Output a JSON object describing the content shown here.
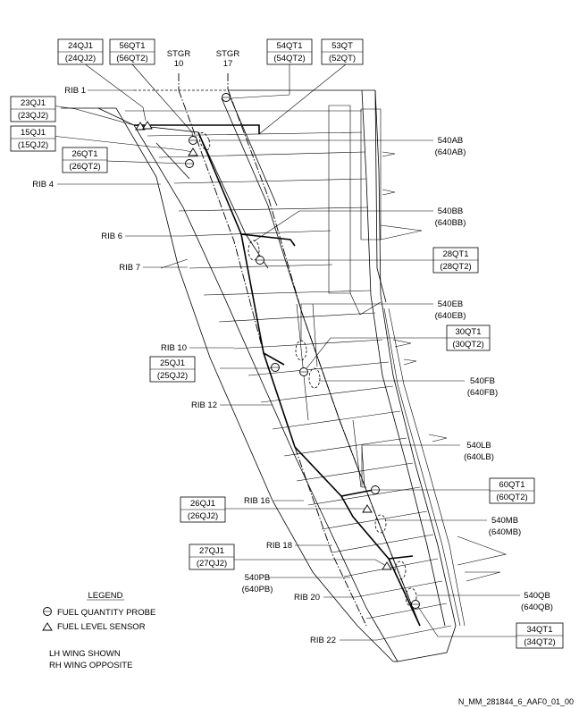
{
  "stringers": [
    "STGR",
    "10",
    "STGR",
    "17"
  ],
  "ribs": {
    "rib1": "RIB 1",
    "rib4": "RIB 4",
    "rib6": "RIB 6",
    "rib7": "RIB 7",
    "rib10": "RIB 10",
    "rib12": "RIB 12",
    "rib16": "RIB 16",
    "rib18": "RIB 18",
    "rib20": "RIB 20",
    "rib22": "RIB 22"
  },
  "boxes": {
    "b24qj": [
      "24QJ1",
      "(24QJ2)"
    ],
    "b56qt": [
      "56QT1",
      "(56QT2)"
    ],
    "b54qt": [
      "54QT1",
      "(54QT2)"
    ],
    "b53qt": [
      "53QT",
      "(52QT)"
    ],
    "b23qj": [
      "23QJ1",
      "(23QJ2)"
    ],
    "b15qj": [
      "15QJ1",
      "(15QJ2)"
    ],
    "b26qt": [
      "26QT1",
      "(26QT2)"
    ],
    "b28qt": [
      "28QT1",
      "(28QT2)"
    ],
    "b30qt": [
      "30QT1",
      "(30QT2)"
    ],
    "b25qj": [
      "25QJ1",
      "(25QJ2)"
    ],
    "b60qt": [
      "60QT1",
      "(60QT2)"
    ],
    "b26qj": [
      "26QJ1",
      "(26QJ2)"
    ],
    "b27qj": [
      "27QJ1",
      "(27QJ2)"
    ],
    "b34qt": [
      "34QT1",
      "(34QT2)"
    ]
  },
  "compartments": {
    "ab": [
      "540AB",
      "(640AB)"
    ],
    "bb": [
      "540BB",
      "(640BB)"
    ],
    "eb": [
      "540EB",
      "(640EB)"
    ],
    "fb": [
      "540FB",
      "(640FB)"
    ],
    "lb": [
      "540LB",
      "(640LB)"
    ],
    "mb": [
      "540MB",
      "(640MB)"
    ],
    "pb": [
      "540PB",
      "(640PB)"
    ],
    "qb": [
      "540QB",
      "(640QB)"
    ]
  },
  "legend": {
    "title": "LEGEND",
    "probe": "FUEL QUANTITY PROBE",
    "sensor": "FUEL LEVEL SENSOR",
    "note1": "LH WING SHOWN",
    "note2": "RH WING OPPOSITE"
  },
  "figure_id": "N_MM_281844_6_AAF0_01_00"
}
